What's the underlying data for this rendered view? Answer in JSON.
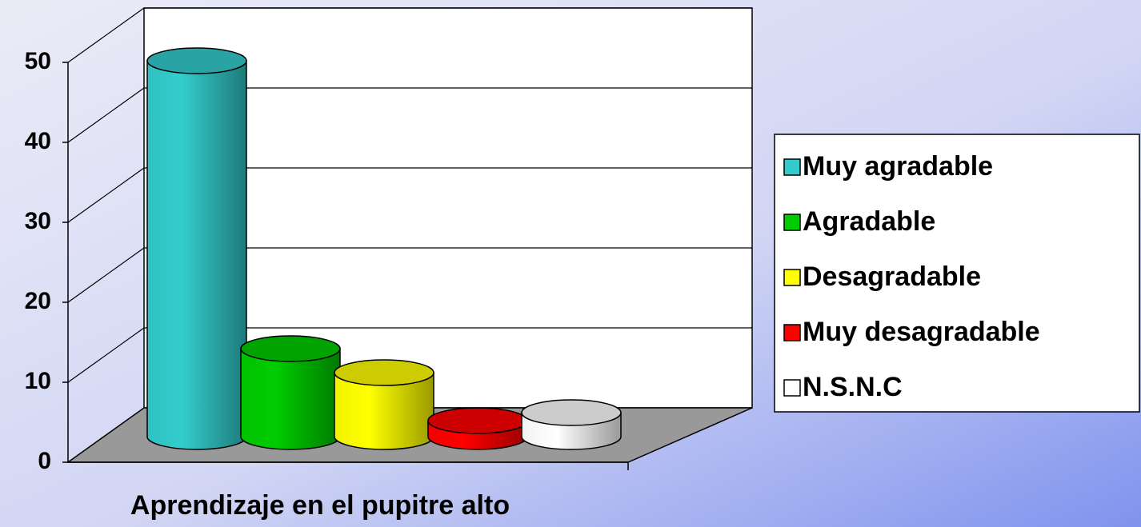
{
  "chart_data": {
    "type": "cylinder3d",
    "x_label": "Aprendizaje en el pupitre alto",
    "categories": [
      "Aprendizaje en el pupitre alto"
    ],
    "series": [
      {
        "name": "Muy agradable",
        "color": "#33cccc",
        "values": [
          47
        ]
      },
      {
        "name": "Agradable",
        "color": "#00cc00",
        "values": [
          11
        ]
      },
      {
        "name": "Desagradable",
        "color": "#ffff00",
        "values": [
          8
        ]
      },
      {
        "name": "Muy desagradable",
        "color": "#ff0000",
        "values": [
          2
        ]
      },
      {
        "name": "N.S.N.C",
        "color": "#ffffff",
        "values": [
          3
        ]
      }
    ],
    "ylim": [
      0,
      50
    ],
    "yticks": [
      0,
      10,
      20,
      30,
      40,
      50
    ],
    "grid": true,
    "legend": "right"
  }
}
